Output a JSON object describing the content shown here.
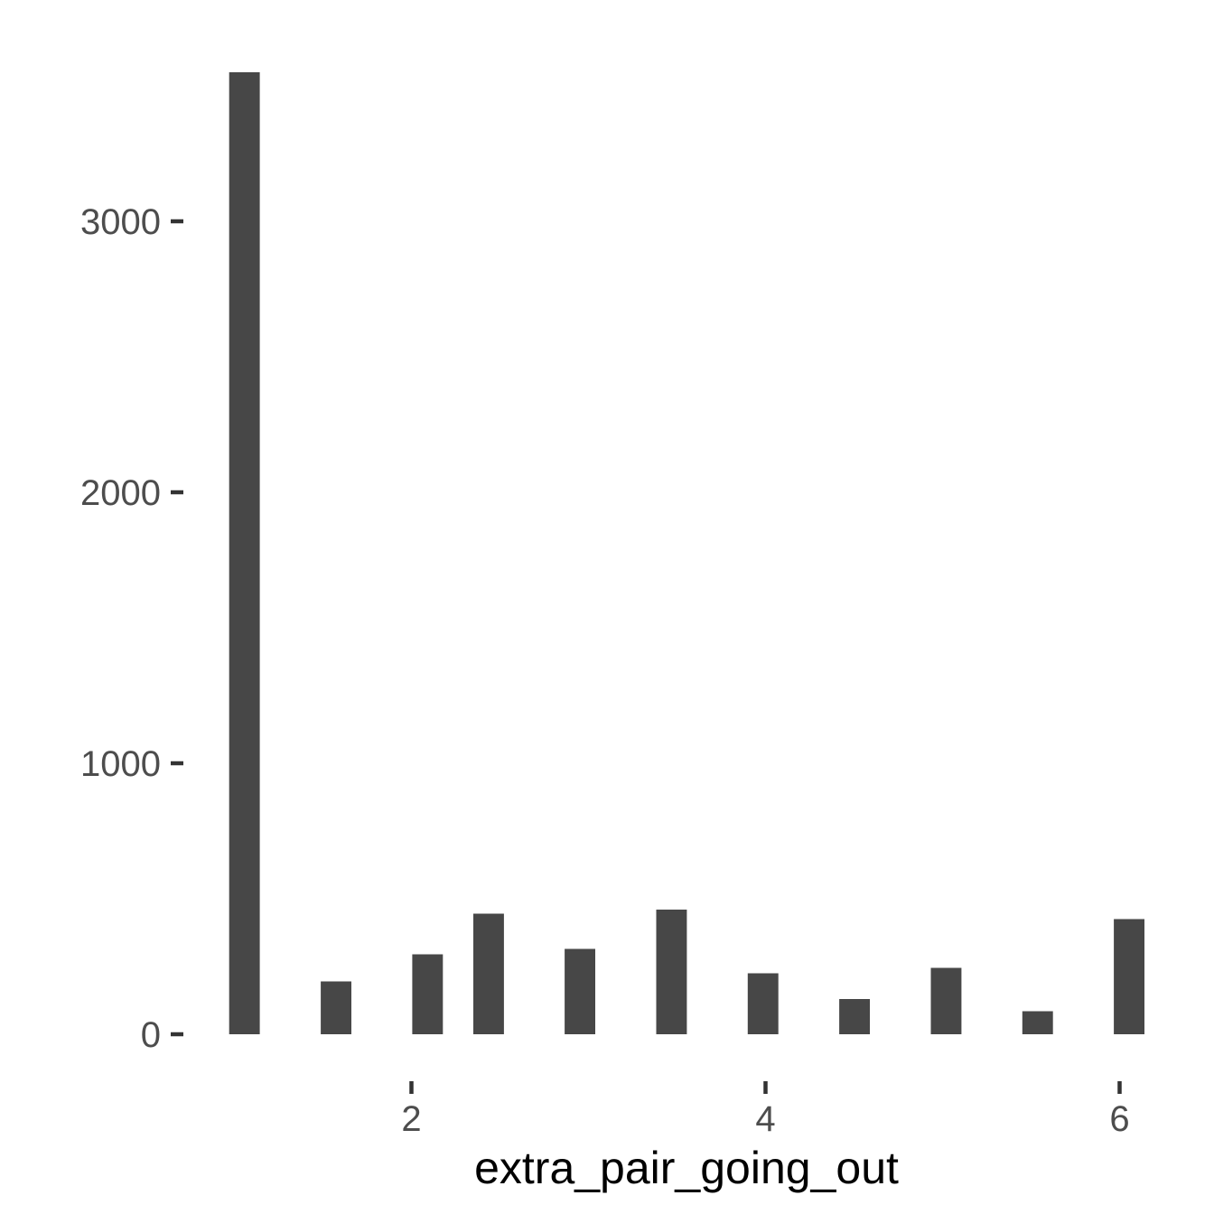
{
  "chart_data": {
    "type": "bar",
    "title": "",
    "xlabel": "extra_pair_going_out",
    "ylabel": "",
    "bar_color": "#474747",
    "xlim": [
      0.6,
      6.2
    ],
    "ylim": [
      0,
      3550
    ],
    "x_ticks": [
      2,
      4,
      6
    ],
    "x_tick_labels": [
      "2",
      "4",
      "6"
    ],
    "y_ticks": [
      0,
      1000,
      2000,
      3000
    ],
    "y_tick_labels": [
      "0",
      "1000",
      "2000",
      "3000"
    ],
    "bin_width": 0.173,
    "bins": [
      {
        "x": 1.057,
        "value": 3550
      },
      {
        "x": 1.574,
        "value": 195
      },
      {
        "x": 2.091,
        "value": 295
      },
      {
        "x": 2.436,
        "value": 445
      },
      {
        "x": 2.952,
        "value": 315
      },
      {
        "x": 3.469,
        "value": 460
      },
      {
        "x": 3.986,
        "value": 225
      },
      {
        "x": 4.503,
        "value": 130
      },
      {
        "x": 5.02,
        "value": 245
      },
      {
        "x": 5.537,
        "value": 85
      },
      {
        "x": 6.054,
        "value": 425
      }
    ],
    "grid": false,
    "legend": "none"
  }
}
